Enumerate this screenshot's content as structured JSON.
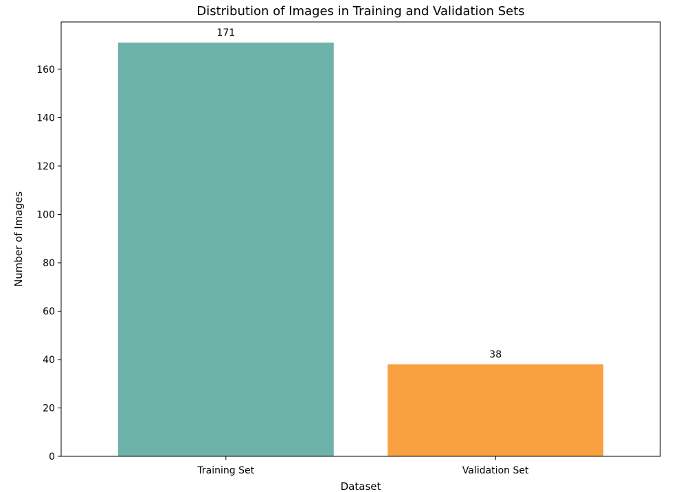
{
  "chart_data": {
    "type": "bar",
    "title": "Distribution of Images in Training and Validation Sets",
    "xlabel": "Dataset",
    "ylabel": "Number of Images",
    "categories": [
      "Training Set",
      "Validation Set"
    ],
    "values": [
      171,
      38
    ],
    "data_labels": [
      "171",
      "38"
    ],
    "colors": [
      "#6db2a8",
      "#f9a141"
    ],
    "ylim": [
      0,
      179.55
    ],
    "yticks": [
      0,
      20,
      40,
      60,
      80,
      100,
      120,
      140,
      160
    ],
    "grid": false,
    "legend": "none"
  }
}
